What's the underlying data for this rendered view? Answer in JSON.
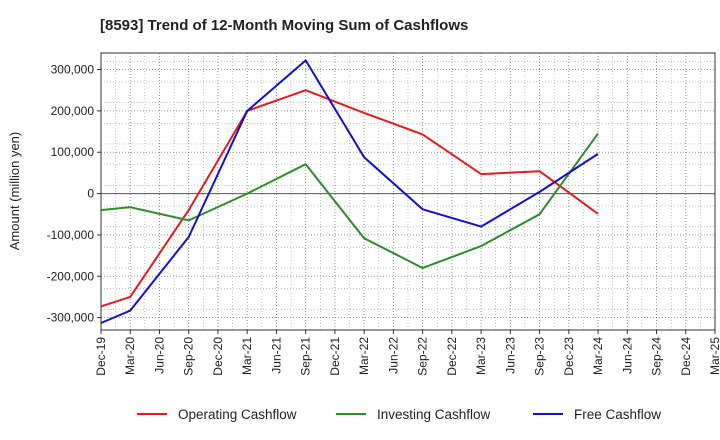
{
  "chart_data": {
    "type": "line",
    "title": "[8593]  Trend of 12-Month Moving Sum of Cashflows",
    "xlabel": "",
    "ylabel": "Amount (million yen)",
    "ylim": [
      -330000,
      340000
    ],
    "yticks": [
      -300000,
      -200000,
      -100000,
      0,
      100000,
      200000,
      300000
    ],
    "ytick_labels": [
      "-300,000",
      "-200,000",
      "-100,000",
      "0",
      "100,000",
      "200,000",
      "300,000"
    ],
    "grid": true,
    "legend_position": "bottom",
    "categories": [
      "Dec-19",
      "Mar-20",
      "Jun-20",
      "Sep-20",
      "Dec-20",
      "Mar-21",
      "Jun-21",
      "Sep-21",
      "Dec-21",
      "Mar-22",
      "Jun-22",
      "Sep-22",
      "Dec-22",
      "Mar-23",
      "Jun-23",
      "Sep-23",
      "Dec-23",
      "Mar-24",
      "Jun-24",
      "Sep-24",
      "Dec-24",
      "Mar-25"
    ],
    "series": [
      {
        "name": "Operating Cashflow",
        "color": "#e41a1c",
        "values": [
          -273000,
          -250000,
          null,
          -40000,
          null,
          200000,
          null,
          250000,
          null,
          195000,
          null,
          143000,
          null,
          47000,
          null,
          54000,
          null,
          -49000,
          null,
          null,
          null,
          null
        ]
      },
      {
        "name": "Investing Cashflow",
        "color": "#2e8b2e",
        "values": [
          -40000,
          -33000,
          null,
          -65000,
          null,
          0,
          null,
          71000,
          null,
          -108000,
          null,
          -180000,
          null,
          -127000,
          null,
          -50000,
          null,
          145000,
          null,
          null,
          null,
          null
        ]
      },
      {
        "name": "Free Cashflow",
        "color": "#1111cc",
        "values": [
          -313000,
          -283000,
          null,
          -105000,
          null,
          200000,
          null,
          322000,
          null,
          88000,
          null,
          -38000,
          null,
          -80000,
          null,
          4000,
          null,
          96000,
          null,
          null,
          null,
          null
        ]
      }
    ]
  }
}
